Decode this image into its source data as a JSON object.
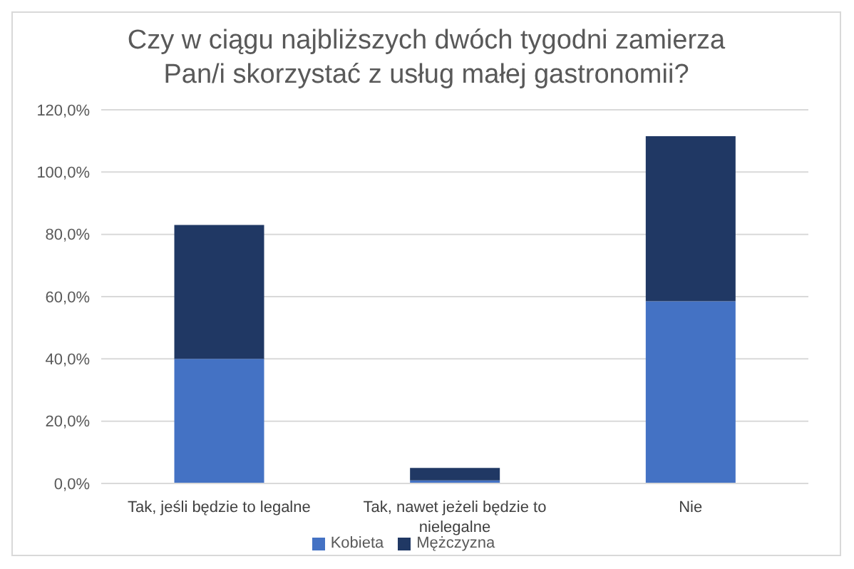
{
  "chart_data": {
    "type": "bar",
    "stacked": true,
    "title": "Czy w ciągu najbliższych dwóch tygodni zamierza Pan/i skorzystać z usług małej gastronomii?",
    "categories": [
      "Tak, jeśli będzie to legalne",
      "Tak, nawet jeżeli będzie to nielegalne",
      "Nie"
    ],
    "series": [
      {
        "name": "Kobieta",
        "color": "#4472c4",
        "values": [
          40,
          1,
          58.5
        ]
      },
      {
        "name": "Mężczyzna",
        "color": "#203864",
        "values": [
          43,
          4,
          53
        ]
      }
    ],
    "ylim": [
      0,
      120
    ],
    "yticks": [
      {
        "value": 0,
        "label": "0,0%"
      },
      {
        "value": 20,
        "label": "20,0%"
      },
      {
        "value": 40,
        "label": "40,0%"
      },
      {
        "value": 60,
        "label": "60,0%"
      },
      {
        "value": 80,
        "label": "80,0%"
      },
      {
        "value": 100,
        "label": "100,0%"
      },
      {
        "value": 120,
        "label": "120,0%"
      }
    ],
    "grid": "y",
    "legend": "bottom"
  }
}
